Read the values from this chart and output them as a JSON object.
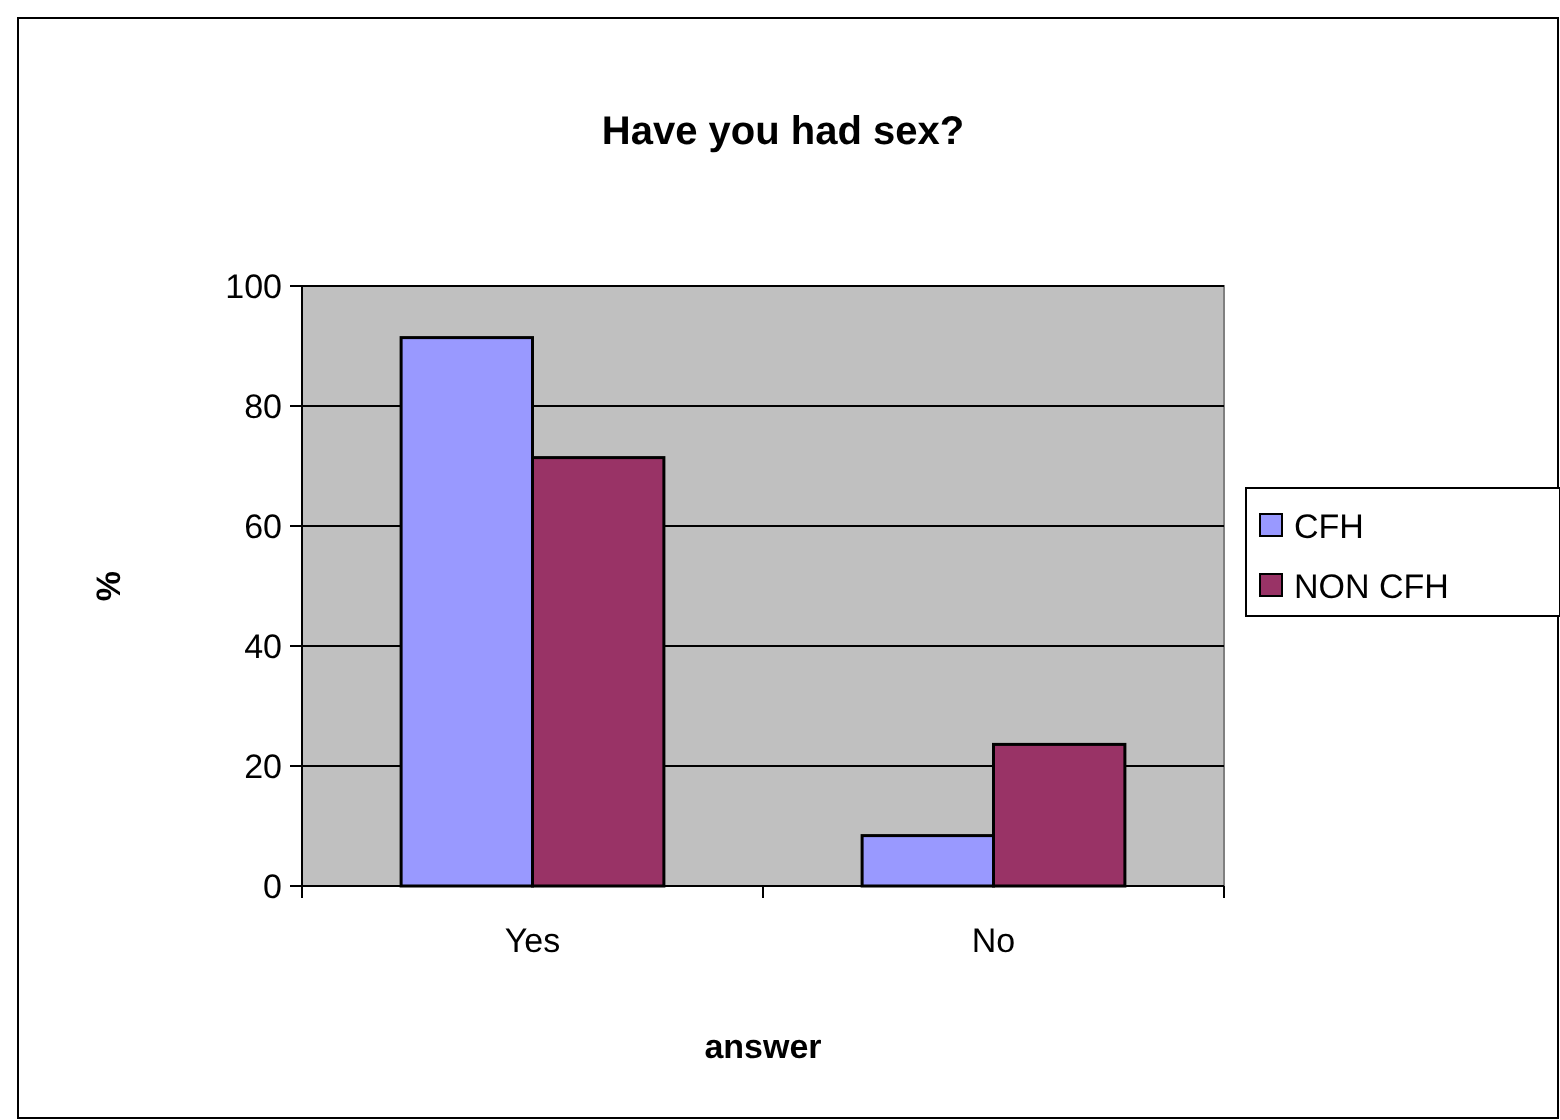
{
  "chart_data": {
    "type": "bar",
    "title": "Have you had sex?",
    "xlabel": "answer",
    "ylabel": "%",
    "categories": [
      "Yes",
      "No"
    ],
    "series": [
      {
        "name": "CFH",
        "color": "#9999ff",
        "values": [
          91.4,
          8.4
        ]
      },
      {
        "name": "NON CFH",
        "color": "#993366",
        "values": [
          71.4,
          23.6
        ]
      }
    ],
    "ylim": [
      0,
      100
    ],
    "yticks": [
      0,
      20,
      40,
      60,
      80,
      100
    ],
    "grid": "y",
    "legend": "right"
  }
}
